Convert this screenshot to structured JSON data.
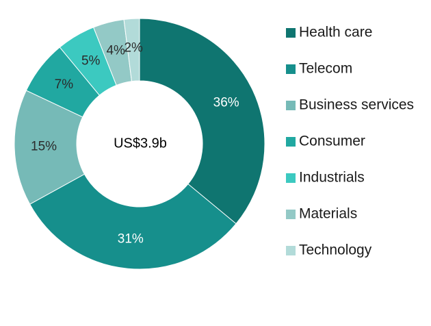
{
  "chart_data": {
    "type": "pie",
    "donut": true,
    "center_label": "US$3.9b",
    "legend_placement": "right",
    "slices": [
      {
        "name": "Health care",
        "value": 36,
        "label": "36%",
        "color": "#0f7570",
        "label_color": "#ffffff"
      },
      {
        "name": "Telecom",
        "value": 31,
        "label": "31%",
        "color": "#168f8c",
        "label_color": "#ffffff"
      },
      {
        "name": "Business services",
        "value": 15,
        "label": "15%",
        "color": "#76bab7",
        "label_color": "#2b2b2b"
      },
      {
        "name": "Consumer",
        "value": 7,
        "label": "7%",
        "color": "#21a8a1",
        "label_color": "#2b2b2b"
      },
      {
        "name": "Industrials",
        "value": 5,
        "label": "5%",
        "color": "#3cc9c0",
        "label_color": "#2b2b2b"
      },
      {
        "name": "Materials",
        "value": 4,
        "label": "4%",
        "color": "#93c9c6",
        "label_color": "#2b2b2b"
      },
      {
        "name": "Technology",
        "value": 2,
        "label": "2%",
        "color": "#b2dbd9",
        "label_color": "#2b2b2b"
      }
    ]
  }
}
